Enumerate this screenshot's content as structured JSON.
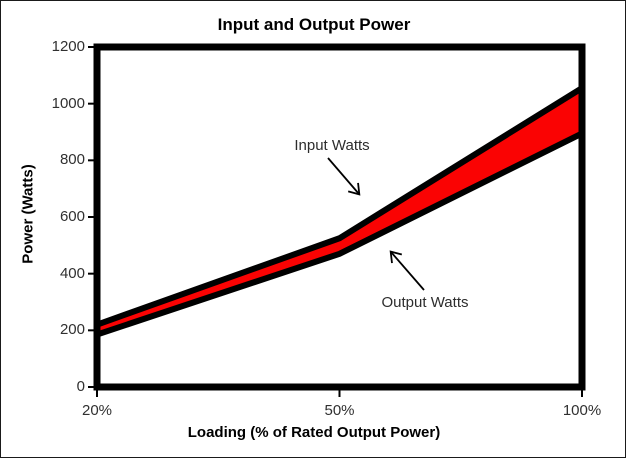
{
  "window": {
    "background_color": "#ffffff",
    "frame_border_color": "#000000"
  },
  "chart_data": {
    "type": "area",
    "title": "Input and Output Power",
    "xlabel": "Loading (% of Rated Output Power)",
    "ylabel": "Power (Watts)",
    "categories": [
      "20%",
      "50%",
      "100%"
    ],
    "series": [
      {
        "name": "Input Watts",
        "values": [
          220,
          525,
          1055
        ]
      },
      {
        "name": "Output Watts",
        "values": [
          185,
          470,
          895
        ]
      }
    ],
    "ylim": [
      0,
      1200
    ],
    "yticks": [
      0,
      200,
      400,
      600,
      800,
      1000,
      1200
    ],
    "grid": false,
    "legend_position": "none",
    "band_fill_color": "#fa0303",
    "line_color": "#000000",
    "axis_color": "#000000"
  },
  "annotations": {
    "input": {
      "label": "Input Watts"
    },
    "output": {
      "label": "Output Watts"
    }
  }
}
